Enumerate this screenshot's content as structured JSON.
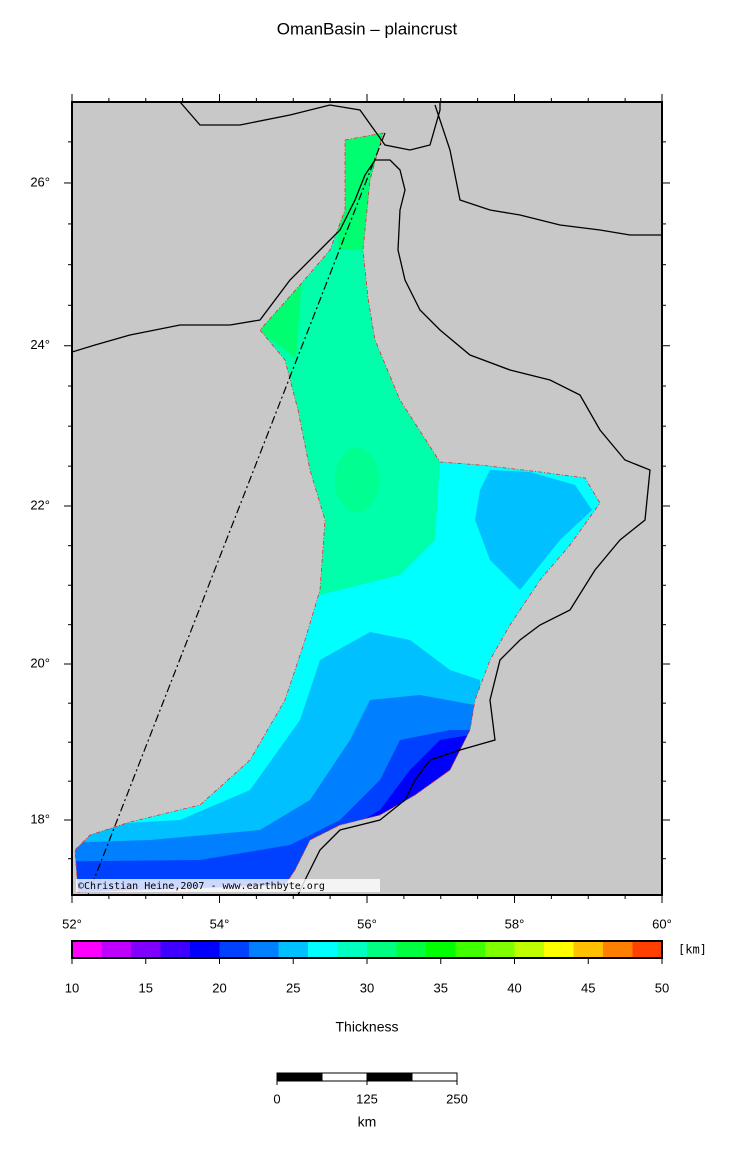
{
  "map": {
    "title": "OmanBasin – plaincrust",
    "lon_ticks": [
      {
        "value": 52,
        "label": "52°"
      },
      {
        "value": 54,
        "label": "54°"
      },
      {
        "value": 56,
        "label": "56°"
      },
      {
        "value": 58,
        "label": "58°"
      },
      {
        "value": 60,
        "label": "60°"
      }
    ],
    "lat_ticks": [
      {
        "value": 18,
        "label": "18°"
      },
      {
        "value": 20,
        "label": "20°"
      },
      {
        "value": 22,
        "label": "22°"
      },
      {
        "value": 24,
        "label": "24°"
      },
      {
        "value": 26,
        "label": "26°"
      }
    ],
    "credit": "©Christian Heine,2007 - www.earthbyte.org",
    "colorbar": {
      "ticks": [
        10,
        15,
        20,
        25,
        30,
        35,
        40,
        45,
        50
      ],
      "unit": "[km]",
      "label": "Thickness",
      "colors": [
        "#ff00ff",
        "#c000ff",
        "#8000ff",
        "#4000ff",
        "#0000ff",
        "#0040ff",
        "#0080ff",
        "#00c0ff",
        "#00ffff",
        "#00ffc0",
        "#00ff80",
        "#00ff40",
        "#00ff00",
        "#40ff00",
        "#80ff00",
        "#c0ff00",
        "#ffff00",
        "#ffc000",
        "#ff8000",
        "#ff4000"
      ]
    },
    "scalebar": {
      "ticks": [
        0,
        125,
        250
      ],
      "unit": "km"
    }
  }
}
